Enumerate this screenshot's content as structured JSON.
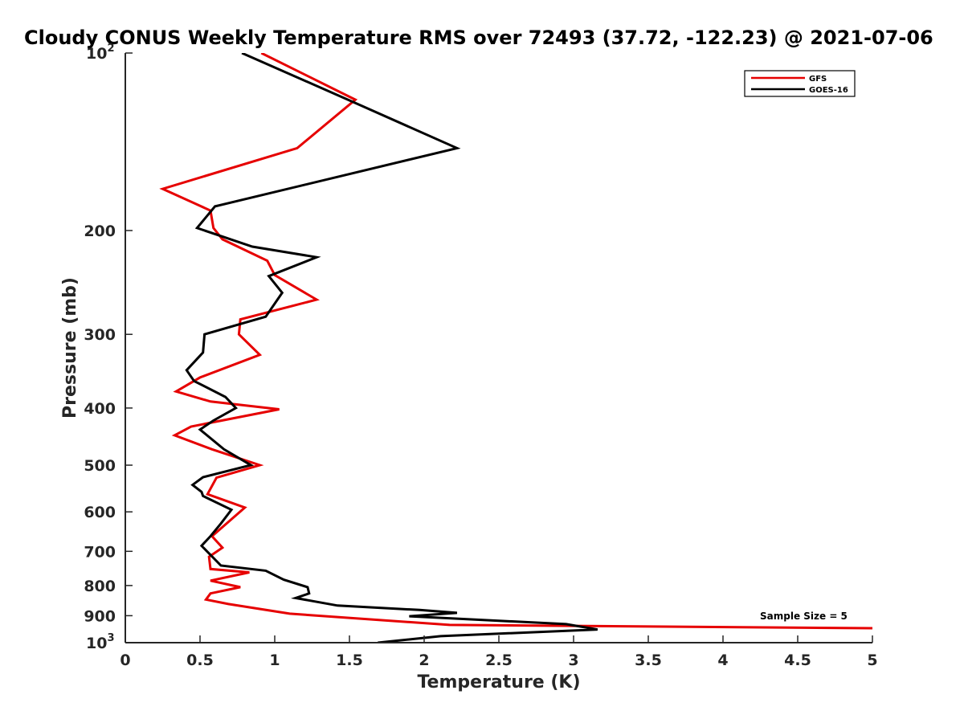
{
  "chart_data": {
    "type": "line",
    "title": "Cloudy CONUS Weekly Temperature RMS over 72493 (37.72, -122.23) @ 2021-07-06",
    "xlabel": "Temperature (K)",
    "ylabel": "Pressure (mb)",
    "xlim": [
      0,
      5
    ],
    "ylim": [
      100,
      1000
    ],
    "y_scale": "log",
    "y_reversed": true,
    "grid": false,
    "legend_position": "top-right",
    "x_ticks": [
      "0",
      "0.5",
      "1",
      "1.5",
      "2",
      "2.5",
      "3",
      "3.5",
      "4",
      "4.5",
      "5"
    ],
    "y_ticks": [
      {
        "value": 100,
        "base": "10",
        "exp": "2"
      },
      {
        "value": 200,
        "label": "200"
      },
      {
        "value": 300,
        "label": "300"
      },
      {
        "value": 400,
        "label": "400"
      },
      {
        "value": 500,
        "label": "500"
      },
      {
        "value": 600,
        "label": "600"
      },
      {
        "value": 700,
        "label": "700"
      },
      {
        "value": 800,
        "label": "800"
      },
      {
        "value": 900,
        "label": "900"
      },
      {
        "value": 1000,
        "base": "10",
        "exp": "3"
      }
    ],
    "series": [
      {
        "name": "GFS",
        "color": "#e60000",
        "x": [
          0.91,
          1.54,
          1.15,
          0.25,
          0.57,
          0.59,
          0.65,
          0.95,
          1.0,
          1.28,
          0.77,
          0.76,
          0.9,
          0.5,
          0.34,
          0.57,
          1.03,
          0.44,
          0.33,
          0.58,
          0.9,
          0.61,
          0.55,
          0.8,
          0.58,
          0.65,
          0.56,
          0.57,
          0.83,
          0.57,
          0.77,
          0.57,
          0.54,
          0.69,
          1.1,
          2.17,
          5.0
        ],
        "y": [
          100,
          120,
          145,
          170,
          185,
          198,
          207,
          225,
          238,
          262,
          283,
          300,
          325,
          355,
          375,
          390,
          402,
          430,
          445,
          470,
          500,
          525,
          560,
          590,
          660,
          690,
          715,
          750,
          760,
          785,
          805,
          825,
          845,
          860,
          893,
          933,
          945
        ]
      },
      {
        "name": "GOES-16",
        "color": "#000000",
        "x": [
          0.78,
          1.49,
          2.22,
          0.6,
          0.48,
          0.85,
          1.28,
          0.96,
          1.05,
          0.94,
          0.53,
          0.52,
          0.41,
          0.46,
          0.67,
          0.74,
          0.59,
          0.5,
          0.66,
          0.84,
          0.52,
          0.45,
          0.51,
          0.52,
          0.71,
          0.64,
          0.57,
          0.51,
          0.64,
          0.94,
          1.06,
          1.22,
          1.23,
          1.14,
          1.42,
          1.97,
          2.22,
          1.9,
          2.95,
          3.16,
          2.11,
          1.69
        ],
        "y": [
          100,
          120,
          145,
          182,
          198,
          213,
          222,
          239,
          255,
          280,
          300,
          322,
          345,
          360,
          383,
          400,
          420,
          435,
          470,
          500,
          524,
          540,
          555,
          564,
          595,
          628,
          660,
          685,
          740,
          755,
          782,
          805,
          825,
          840,
          865,
          880,
          890,
          902,
          930,
          950,
          975,
          1000
        ]
      }
    ],
    "annotations": [
      "Sample Size = 5"
    ]
  }
}
